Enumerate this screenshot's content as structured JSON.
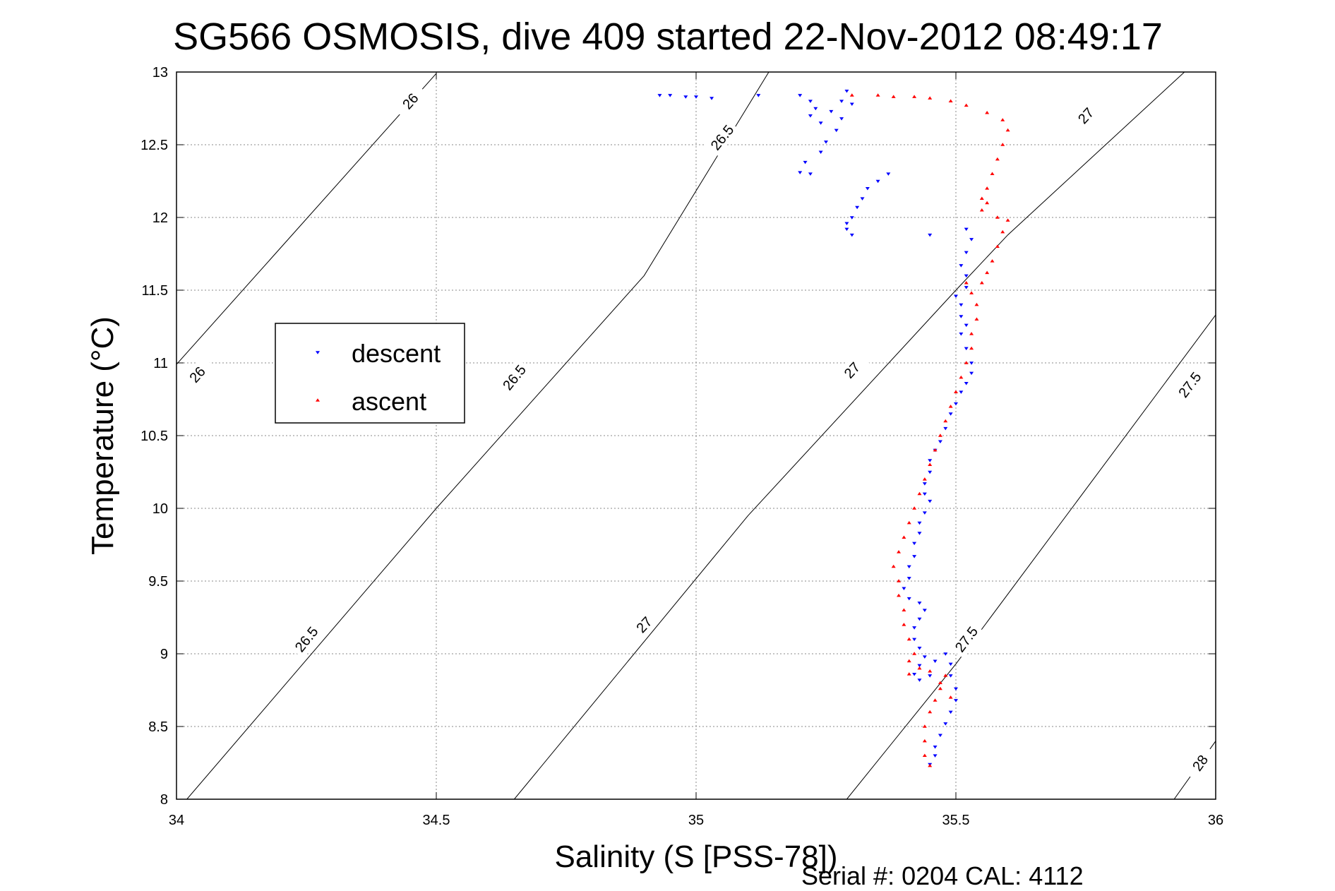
{
  "chart_data": {
    "type": "scatter",
    "title": "SG566 OSMOSIS, dive 409 started 22-Nov-2012 08:49:17",
    "xlabel": "Salinity (S [PSS-78])",
    "ylabel": "Temperature (°C)",
    "xlim": [
      34,
      36
    ],
    "ylim": [
      8,
      13
    ],
    "x_ticks": [
      "34",
      "34.5",
      "35",
      "35.5",
      "36"
    ],
    "y_ticks": [
      "8",
      "8.5",
      "9",
      "9.5",
      "10",
      "10.5",
      "11",
      "11.5",
      "12",
      "12.5",
      "13"
    ],
    "grid": true,
    "legend_position": "left-middle",
    "footer": "Serial #: 0204  CAL: 4112",
    "density_contours": [
      {
        "label": "26",
        "points": [
          [
            34.0,
            10.99
          ],
          [
            34.5,
            12.99
          ]
        ],
        "label_positions": [
          [
            34.04,
            10.92
          ],
          [
            34.45,
            12.8
          ]
        ]
      },
      {
        "label": "26.5",
        "points": [
          [
            34.02,
            8.0
          ],
          [
            34.5,
            10.0
          ],
          [
            34.9,
            11.6
          ],
          [
            35.14,
            13.0
          ]
        ],
        "label_positions": [
          [
            34.25,
            9.1
          ],
          [
            34.65,
            10.9
          ],
          [
            35.05,
            12.55
          ]
        ]
      },
      {
        "label": "27",
        "points": [
          [
            34.65,
            8.0
          ],
          [
            35.1,
            9.95
          ],
          [
            35.5,
            11.5
          ],
          [
            35.6,
            11.88
          ],
          [
            35.94,
            13.0
          ]
        ],
        "label_positions": [
          [
            34.9,
            9.2
          ],
          [
            35.3,
            10.95
          ],
          [
            35.75,
            12.7
          ]
        ]
      },
      {
        "label": "27.5",
        "points": [
          [
            35.29,
            8.0
          ],
          [
            35.5,
            8.93
          ],
          [
            36.0,
            11.33
          ]
        ],
        "label_positions": [
          [
            35.52,
            9.1
          ],
          [
            35.95,
            10.85
          ]
        ]
      },
      {
        "label": "28",
        "points": [
          [
            35.92,
            8.0
          ],
          [
            36.0,
            8.4
          ]
        ],
        "label_positions": [
          [
            35.97,
            8.25
          ]
        ]
      }
    ],
    "series": [
      {
        "name": "descent",
        "color": "#0000ff",
        "marker": "triangle-down",
        "points": [
          [
            34.93,
            12.84
          ],
          [
            34.95,
            12.84
          ],
          [
            34.98,
            12.83
          ],
          [
            35.0,
            12.83
          ],
          [
            35.03,
            12.82
          ],
          [
            35.12,
            12.84
          ],
          [
            35.2,
            12.84
          ],
          [
            35.22,
            12.8
          ],
          [
            35.23,
            12.75
          ],
          [
            35.22,
            12.7
          ],
          [
            35.24,
            12.65
          ],
          [
            35.26,
            12.73
          ],
          [
            35.28,
            12.8
          ],
          [
            35.29,
            12.87
          ],
          [
            35.3,
            12.78
          ],
          [
            35.28,
            12.68
          ],
          [
            35.27,
            12.6
          ],
          [
            35.25,
            12.52
          ],
          [
            35.24,
            12.45
          ],
          [
            35.21,
            12.38
          ],
          [
            35.2,
            12.31
          ],
          [
            35.22,
            12.3
          ],
          [
            35.37,
            12.3
          ],
          [
            35.35,
            12.25
          ],
          [
            35.33,
            12.2
          ],
          [
            35.32,
            12.13
          ],
          [
            35.31,
            12.07
          ],
          [
            35.3,
            12.0
          ],
          [
            35.29,
            11.96
          ],
          [
            35.29,
            11.92
          ],
          [
            35.3,
            11.88
          ],
          [
            35.45,
            11.88
          ],
          [
            35.52,
            11.92
          ],
          [
            35.53,
            11.85
          ],
          [
            35.52,
            11.76
          ],
          [
            35.51,
            11.67
          ],
          [
            35.52,
            11.6
          ],
          [
            35.52,
            11.52
          ],
          [
            35.5,
            11.46
          ],
          [
            35.51,
            11.4
          ],
          [
            35.51,
            11.32
          ],
          [
            35.52,
            11.26
          ],
          [
            35.51,
            11.2
          ],
          [
            35.52,
            11.1
          ],
          [
            35.53,
            11.0
          ],
          [
            35.53,
            10.93
          ],
          [
            35.52,
            10.86
          ],
          [
            35.51,
            10.8
          ],
          [
            35.5,
            10.72
          ],
          [
            35.49,
            10.65
          ],
          [
            35.48,
            10.55
          ],
          [
            35.47,
            10.46
          ],
          [
            35.46,
            10.4
          ],
          [
            35.45,
            10.33
          ],
          [
            35.45,
            10.25
          ],
          [
            35.44,
            10.17
          ],
          [
            35.44,
            10.1
          ],
          [
            35.45,
            10.05
          ],
          [
            35.44,
            9.97
          ],
          [
            35.43,
            9.9
          ],
          [
            35.43,
            9.83
          ],
          [
            35.42,
            9.76
          ],
          [
            35.42,
            9.67
          ],
          [
            35.41,
            9.6
          ],
          [
            35.41,
            9.52
          ],
          [
            35.4,
            9.45
          ],
          [
            35.41,
            9.38
          ],
          [
            35.43,
            9.35
          ],
          [
            35.44,
            9.3
          ],
          [
            35.43,
            9.24
          ],
          [
            35.42,
            9.18
          ],
          [
            35.42,
            9.1
          ],
          [
            35.43,
            9.04
          ],
          [
            35.44,
            8.98
          ],
          [
            35.43,
            8.92
          ],
          [
            35.42,
            8.86
          ],
          [
            35.43,
            8.82
          ],
          [
            35.45,
            8.85
          ],
          [
            35.46,
            8.95
          ],
          [
            35.48,
            9.0
          ],
          [
            35.49,
            8.93
          ],
          [
            35.49,
            8.85
          ],
          [
            35.5,
            8.76
          ],
          [
            35.5,
            8.68
          ],
          [
            35.49,
            8.6
          ],
          [
            35.48,
            8.52
          ],
          [
            35.47,
            8.44
          ],
          [
            35.46,
            8.36
          ],
          [
            35.46,
            8.3
          ],
          [
            35.45,
            8.24
          ]
        ]
      },
      {
        "name": "ascent",
        "color": "#ff0000",
        "marker": "triangle-up",
        "points": [
          [
            35.45,
            8.23
          ],
          [
            35.44,
            8.3
          ],
          [
            35.44,
            8.4
          ],
          [
            35.44,
            8.5
          ],
          [
            35.45,
            8.6
          ],
          [
            35.46,
            8.68
          ],
          [
            35.47,
            8.76
          ],
          [
            35.48,
            8.85
          ],
          [
            35.49,
            8.7
          ],
          [
            35.47,
            8.8
          ],
          [
            35.45,
            8.88
          ],
          [
            35.43,
            8.9
          ],
          [
            35.41,
            8.86
          ],
          [
            35.41,
            8.95
          ],
          [
            35.42,
            9.0
          ],
          [
            35.41,
            9.1
          ],
          [
            35.4,
            9.2
          ],
          [
            35.4,
            9.3
          ],
          [
            35.39,
            9.4
          ],
          [
            35.39,
            9.5
          ],
          [
            35.38,
            9.6
          ],
          [
            35.39,
            9.7
          ],
          [
            35.4,
            9.8
          ],
          [
            35.41,
            9.9
          ],
          [
            35.42,
            10.0
          ],
          [
            35.43,
            10.1
          ],
          [
            35.44,
            10.2
          ],
          [
            35.45,
            10.3
          ],
          [
            35.46,
            10.4
          ],
          [
            35.47,
            10.5
          ],
          [
            35.48,
            10.6
          ],
          [
            35.49,
            10.7
          ],
          [
            35.5,
            10.8
          ],
          [
            35.51,
            10.9
          ],
          [
            35.52,
            11.0
          ],
          [
            35.53,
            11.1
          ],
          [
            35.53,
            11.2
          ],
          [
            35.54,
            11.3
          ],
          [
            35.54,
            11.4
          ],
          [
            35.53,
            11.48
          ],
          [
            35.52,
            11.55
          ],
          [
            35.55,
            11.55
          ],
          [
            35.56,
            11.62
          ],
          [
            35.57,
            11.7
          ],
          [
            35.58,
            11.8
          ],
          [
            35.59,
            11.9
          ],
          [
            35.6,
            11.98
          ],
          [
            35.58,
            12.0
          ],
          [
            35.55,
            12.05
          ],
          [
            35.56,
            12.1
          ],
          [
            35.55,
            12.13
          ],
          [
            35.56,
            12.2
          ],
          [
            35.57,
            12.3
          ],
          [
            35.58,
            12.4
          ],
          [
            35.59,
            12.5
          ],
          [
            35.6,
            12.6
          ],
          [
            35.59,
            12.67
          ],
          [
            35.56,
            12.72
          ],
          [
            35.52,
            12.77
          ],
          [
            35.49,
            12.8
          ],
          [
            35.45,
            12.82
          ],
          [
            35.42,
            12.83
          ],
          [
            35.38,
            12.83
          ],
          [
            35.35,
            12.84
          ],
          [
            35.3,
            12.84
          ]
        ]
      }
    ]
  }
}
